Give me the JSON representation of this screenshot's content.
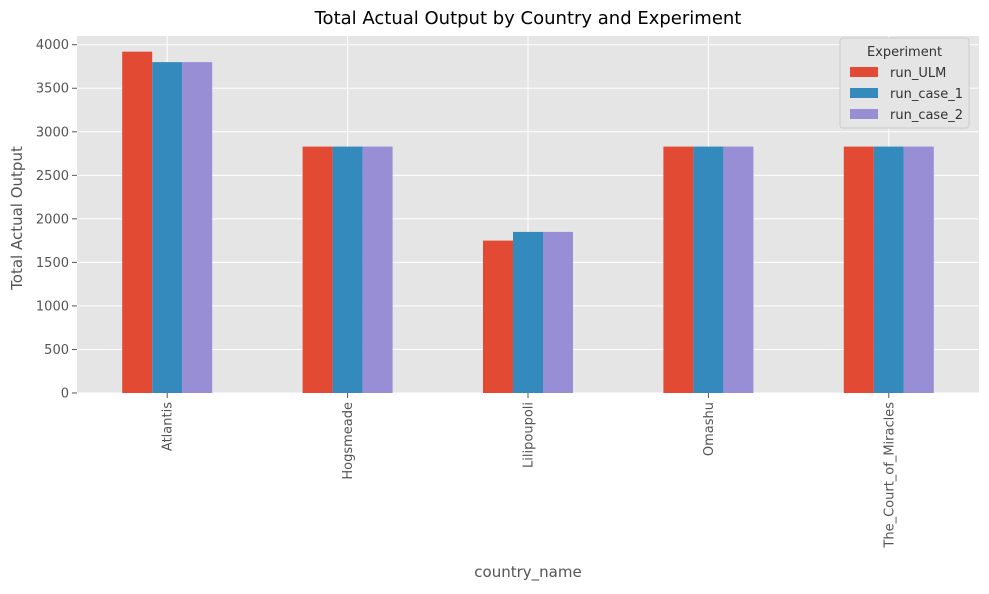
{
  "chart_data": {
    "type": "bar",
    "title": "Total Actual Output by Country and Experiment",
    "xlabel": "country_name",
    "ylabel": "Total Actual Output",
    "categories": [
      "Atlantis",
      "Hogsmeade",
      "Lilipoupoli",
      "Omashu",
      "The_Court_of_Miracles"
    ],
    "series": [
      {
        "name": "run_ULM",
        "color": "#E24A33",
        "values": [
          3920,
          2830,
          1750,
          2830,
          2830
        ]
      },
      {
        "name": "run_case_1",
        "color": "#348ABD",
        "values": [
          3800,
          2830,
          1850,
          2830,
          2830
        ]
      },
      {
        "name": "run_case_2",
        "color": "#988ED5",
        "values": [
          3800,
          2830,
          1850,
          2830,
          2830
        ]
      }
    ],
    "ylim": [
      0,
      4100
    ],
    "yticks": [
      0,
      500,
      1000,
      1500,
      2000,
      2500,
      3000,
      3500,
      4000
    ],
    "grid": true,
    "legend": {
      "title": "Experiment",
      "position": "top-right"
    },
    "colors": {
      "plot_background": "#E5E5E5",
      "grid": "#FFFFFF",
      "text": "#555555",
      "title_text": "#000000"
    }
  }
}
